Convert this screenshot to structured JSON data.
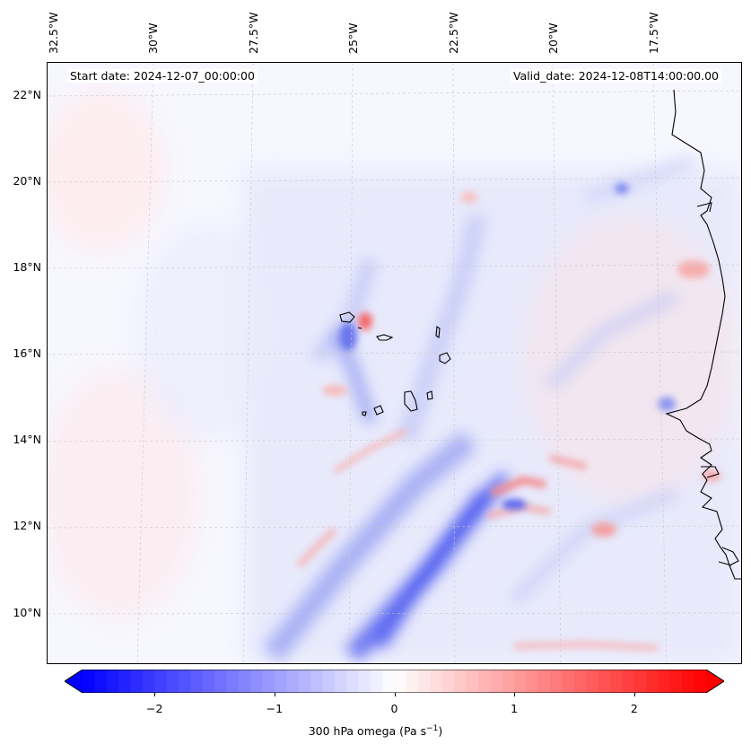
{
  "map": {
    "lon_labels": [
      "32.5°W",
      "30°W",
      "27.5°W",
      "25°W",
      "22.5°W",
      "20°W",
      "17.5°W"
    ],
    "lat_labels": [
      "22°N",
      "20°N",
      "18°N",
      "16°N",
      "14°N",
      "12°N",
      "10°N"
    ],
    "start_date": "Start date: 2024-12-07_00:00:00",
    "valid_date": "Valid_date: 2024-12-08T14:00:00.00",
    "field": "300 hPa omega",
    "coastline_color": "#000000"
  },
  "colorbar": {
    "ticks": [
      "−2",
      "−1",
      "0",
      "1",
      "2"
    ],
    "tick_values": [
      -2,
      -1,
      0,
      1,
      2
    ],
    "range": [
      -2.6,
      2.6
    ],
    "label_main": "300 hPa omega (Pa s",
    "label_exp": "−1",
    "label_close": ")",
    "low_color": "#0000ff",
    "mid_color": "#ffffff",
    "high_color": "#ff0000"
  }
}
